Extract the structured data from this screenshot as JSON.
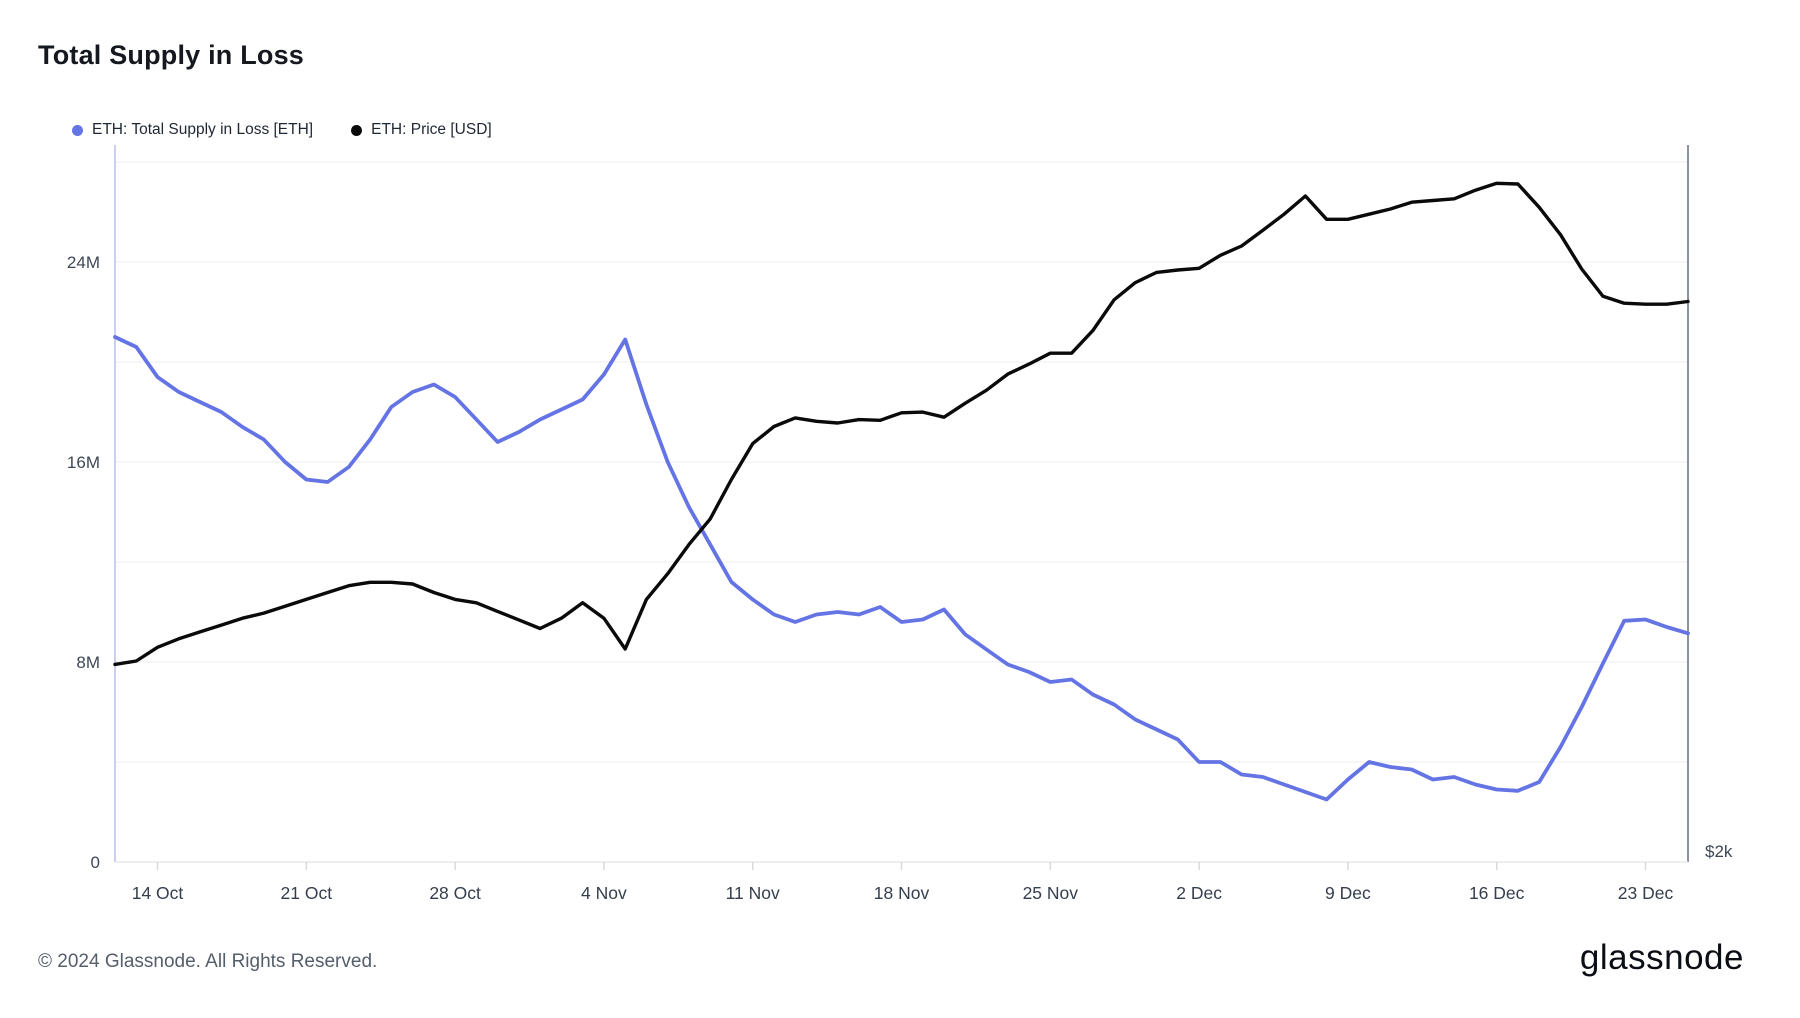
{
  "page": {
    "title": "Total Supply in Loss",
    "footer": "© 2024 Glassnode. All Rights Reserved.",
    "brand": "glassnode"
  },
  "legend": [
    {
      "label": "ETH: Total Supply in Loss [ETH]",
      "color": "#6474e4"
    },
    {
      "label": "ETH: Price [USD]",
      "color": "#0a0a0a"
    }
  ],
  "chart_data": {
    "type": "line",
    "title": "Total Supply in Loss",
    "grid": "horizontal-only",
    "legend_position": "top-left",
    "x_labels": [
      "12 Oct",
      "13 Oct",
      "14 Oct",
      "15 Oct",
      "16 Oct",
      "17 Oct",
      "18 Oct",
      "19 Oct",
      "20 Oct",
      "21 Oct",
      "22 Oct",
      "23 Oct",
      "24 Oct",
      "25 Oct",
      "26 Oct",
      "27 Oct",
      "28 Oct",
      "29 Oct",
      "30 Oct",
      "31 Oct",
      "1 Nov",
      "2 Nov",
      "3 Nov",
      "4 Nov",
      "5 Nov",
      "6 Nov",
      "7 Nov",
      "8 Nov",
      "9 Nov",
      "10 Nov",
      "11 Nov",
      "12 Nov",
      "13 Nov",
      "14 Nov",
      "15 Nov",
      "16 Nov",
      "17 Nov",
      "18 Nov",
      "19 Nov",
      "20 Nov",
      "21 Nov",
      "22 Nov",
      "23 Nov",
      "24 Nov",
      "25 Nov",
      "26 Nov",
      "27 Nov",
      "28 Nov",
      "29 Nov",
      "30 Nov",
      "1 Dec",
      "2 Dec",
      "3 Dec",
      "4 Dec",
      "5 Dec",
      "6 Dec",
      "7 Dec",
      "8 Dec",
      "9 Dec",
      "10 Dec",
      "11 Dec",
      "12 Dec",
      "13 Dec",
      "14 Dec",
      "15 Dec",
      "16 Dec",
      "17 Dec",
      "18 Dec",
      "19 Dec",
      "20 Dec",
      "21 Dec",
      "22 Dec",
      "23 Dec",
      "24 Dec",
      "25 Dec"
    ],
    "x_ticks": [
      {
        "index": 2,
        "label": "14 Oct"
      },
      {
        "index": 9,
        "label": "21 Oct"
      },
      {
        "index": 16,
        "label": "28 Oct"
      },
      {
        "index": 23,
        "label": "4 Nov"
      },
      {
        "index": 30,
        "label": "11 Nov"
      },
      {
        "index": 37,
        "label": "18 Nov"
      },
      {
        "index": 44,
        "label": "25 Nov"
      },
      {
        "index": 51,
        "label": "2 Dec"
      },
      {
        "index": 58,
        "label": "9 Dec"
      },
      {
        "index": 65,
        "label": "16 Dec"
      },
      {
        "index": 72,
        "label": "23 Dec"
      }
    ],
    "left_axis": {
      "unit": "ETH (millions)",
      "min": 0,
      "max": 28.68,
      "grid_step": 4,
      "ticks": [
        {
          "value": 0,
          "label": "0"
        },
        {
          "value": 8,
          "label": "8M"
        },
        {
          "value": 16,
          "label": "16M"
        },
        {
          "value": 24,
          "label": "24M"
        }
      ]
    },
    "right_axis": {
      "unit": "USD",
      "min": 1968,
      "max": 4062,
      "ticks": [
        {
          "value": 2000,
          "label": "$2k"
        }
      ]
    },
    "series": [
      {
        "name": "ETH: Total Supply in Loss [ETH]",
        "axis": "left",
        "color": "#6474e4",
        "values_unit": "million ETH",
        "values": [
          21.0,
          20.6,
          19.4,
          18.8,
          18.4,
          18.0,
          17.4,
          16.9,
          16.0,
          15.3,
          15.2,
          15.8,
          16.9,
          18.2,
          18.8,
          19.1,
          18.6,
          17.7,
          16.8,
          17.2,
          17.7,
          18.1,
          18.5,
          19.5,
          20.9,
          18.3,
          16.0,
          14.2,
          12.7,
          11.2,
          10.5,
          9.9,
          9.6,
          9.9,
          10.0,
          9.9,
          10.2,
          9.6,
          9.7,
          10.1,
          9.1,
          8.5,
          7.9,
          7.6,
          7.2,
          7.3,
          6.7,
          6.3,
          5.7,
          5.3,
          4.9,
          4.0,
          4.0,
          3.5,
          3.4,
          3.1,
          2.8,
          2.5,
          3.3,
          4.0,
          3.8,
          3.7,
          3.3,
          3.4,
          3.1,
          2.9,
          2.85,
          3.2,
          4.6,
          6.2,
          7.95,
          9.65,
          9.7,
          9.4,
          9.15
        ]
      },
      {
        "name": "ETH: Price [USD]",
        "axis": "right",
        "color": "#0a0a0a",
        "values_unit": "USD",
        "values": [
          2545,
          2555,
          2595,
          2620,
          2640,
          2660,
          2680,
          2695,
          2715,
          2735,
          2755,
          2775,
          2785,
          2785,
          2780,
          2755,
          2735,
          2725,
          2700,
          2675,
          2650,
          2680,
          2725,
          2680,
          2590,
          2735,
          2810,
          2895,
          2970,
          3085,
          3190,
          3240,
          3265,
          3255,
          3250,
          3260,
          3258,
          3280,
          3282,
          3267,
          3308,
          3346,
          3393,
          3422,
          3454,
          3454,
          3520,
          3610,
          3660,
          3690,
          3697,
          3702,
          3740,
          3767,
          3813,
          3860,
          3913,
          3845,
          3845,
          3860,
          3875,
          3895,
          3900,
          3905,
          3930,
          3950,
          3948,
          3880,
          3800,
          3700,
          3620,
          3600,
          3597,
          3597,
          3605
        ]
      }
    ]
  }
}
